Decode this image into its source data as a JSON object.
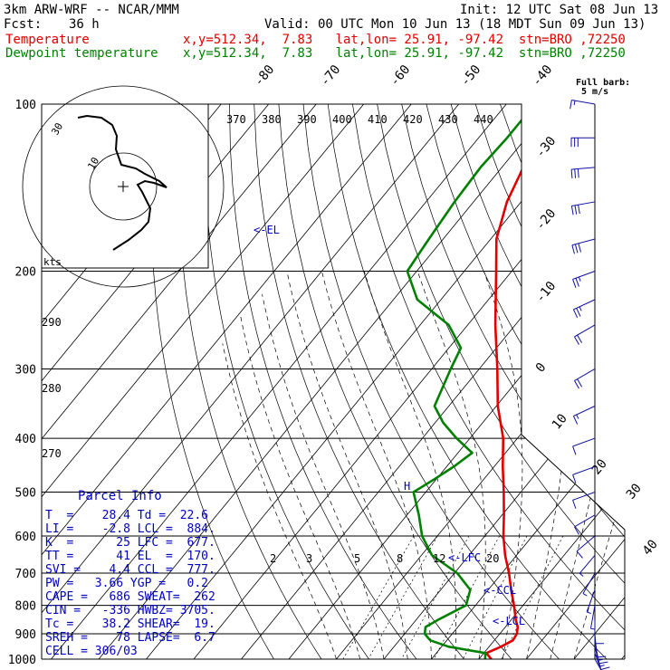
{
  "header": {
    "model": "3km ARW-WRF -- NCAR/MMM",
    "init": "Init: 12 UTC Sat 08 Jun 13",
    "fcst_label": "Fcst:",
    "fcst_value": "36 h",
    "valid": "Valid: 00 UTC Mon 10 Jun 13 (18 MDT Sun 09 Jun 13)",
    "temp_label": "Temperature",
    "temp_info": "x,y=512.34,  7.83   lat,lon= 25.91, -97.42  stn=BRO ,72250",
    "dew_label": "Dewpoint temperature",
    "dew_info": "x,y=512.34,  7.83   lat,lon= 25.91, -97.42  stn=BRO ,72250",
    "barb_title_1": "Full barb:",
    "barb_title_2": "5 m/s"
  },
  "colors": {
    "temperature": "#e00000",
    "dewpoint": "#008000",
    "parcel_text": "#0000c0",
    "hodograph": "#000000"
  },
  "chart_data": {
    "type": "line",
    "title": "",
    "pressure_levels_hpa": [
      100,
      200,
      300,
      400,
      500,
      600,
      700,
      800,
      900,
      1000
    ],
    "isotherm_labels": [
      "-80",
      "-70",
      "-60",
      "-50",
      "-40",
      "-30",
      "-20",
      "-10",
      "0",
      "10",
      "20",
      "30",
      "40"
    ],
    "theta_labels": [
      "370",
      "380",
      "390",
      "400",
      "410",
      "420",
      "430",
      "440"
    ],
    "dry_adiabat_labels": [
      "290",
      "280",
      "270"
    ],
    "mixing_ratio_labels": [
      "2",
      "3",
      "5",
      "8",
      "12",
      "20"
    ],
    "annotations": {
      "el": "<-EL",
      "lfc": "<-LFC",
      "ccl": "<-CCL",
      "lcl": "<-LCL",
      "h": "H"
    },
    "series": [
      {
        "name": "Temperature",
        "points": [
          [
            1000,
            22.6
          ],
          [
            975,
            20.5
          ],
          [
            950,
            22.5
          ],
          [
            925,
            23.9
          ],
          [
            900,
            23.6
          ],
          [
            875,
            22.6
          ],
          [
            850,
            21.0
          ],
          [
            800,
            18.1
          ],
          [
            750,
            14.8
          ],
          [
            700,
            11.5
          ],
          [
            650,
            7.6
          ],
          [
            600,
            3.9
          ],
          [
            550,
            0.4
          ],
          [
            500,
            -3.6
          ],
          [
            450,
            -8.2
          ],
          [
            400,
            -13.0
          ],
          [
            350,
            -19.7
          ],
          [
            300,
            -26.2
          ],
          [
            250,
            -34.2
          ],
          [
            200,
            -43.3
          ],
          [
            175,
            -48.8
          ],
          [
            150,
            -53.0
          ],
          [
            130,
            -55.5
          ],
          [
            115,
            -57.0
          ],
          [
            100,
            -58.0
          ]
        ]
      },
      {
        "name": "Dewpoint temperature",
        "points": [
          [
            1000,
            21.3
          ],
          [
            975,
            20.3
          ],
          [
            950,
            11.5
          ],
          [
            925,
            6.5
          ],
          [
            900,
            4.2
          ],
          [
            875,
            3.2
          ],
          [
            850,
            4.6
          ],
          [
            800,
            8.0
          ],
          [
            750,
            6.2
          ],
          [
            700,
            0.6
          ],
          [
            650,
            -7.8
          ],
          [
            600,
            -13.2
          ],
          [
            550,
            -17.5
          ],
          [
            500,
            -22.6
          ],
          [
            475,
            -20.5
          ],
          [
            450,
            -18.5
          ],
          [
            425,
            -17.0
          ],
          [
            400,
            -22.8
          ],
          [
            375,
            -28.3
          ],
          [
            350,
            -33.0
          ],
          [
            300,
            -36.0
          ],
          [
            275,
            -37.5
          ],
          [
            250,
            -44.0
          ],
          [
            225,
            -55.0
          ],
          [
            200,
            -62.0
          ],
          [
            175,
            -63.0
          ],
          [
            150,
            -64.0
          ],
          [
            130,
            -64.5
          ],
          [
            115,
            -64.0
          ],
          [
            100,
            -64.0
          ]
        ]
      }
    ],
    "hodograph": {
      "speed_rings_kts": [
        10,
        30
      ],
      "ring_labels": [
        "10",
        "30"
      ],
      "axis_label": "kts",
      "points": [
        [
          -3.0,
          -34.0
        ],
        [
          -0.5,
          -35.5
        ],
        [
          5.0,
          -33.0
        ],
        [
          8.0,
          -30.0
        ],
        [
          8.0,
          -23.0
        ],
        [
          10.0,
          -15.0
        ],
        [
          10.5,
          -10.0
        ],
        [
          12.0,
          -7.0
        ],
        [
          14.0,
          -8.0
        ],
        [
          16.0,
          -11.0
        ],
        [
          19.0,
          -14.0
        ],
        [
          23.0,
          -17.0
        ],
        [
          28.0,
          -20.0
        ],
        [
          36.0,
          -18.0
        ],
        [
          46.0,
          -17.0
        ],
        [
          56.0,
          -15.0
        ],
        [
          66.0,
          -13.0
        ],
        [
          73.0,
          -12.0
        ],
        [
          80.0,
          -12.0
        ],
        [
          86.0,
          -13.0
        ],
        [
          92.0,
          -13.5
        ]
      ]
    },
    "wind_barbs": [
      {
        "p": 1000,
        "wdir": 150,
        "wspd": 6
      },
      {
        "p": 975,
        "wdir": 160,
        "wspd": 8
      },
      {
        "p": 950,
        "wdir": 165,
        "wspd": 9
      },
      {
        "p": 925,
        "wdir": 170,
        "wspd": 8
      },
      {
        "p": 900,
        "wdir": 175,
        "wspd": 6
      },
      {
        "p": 850,
        "wdir": 180,
        "wspd": 5
      },
      {
        "p": 800,
        "wdir": 190,
        "wspd": 4
      },
      {
        "p": 750,
        "wdir": 200,
        "wspd": 4
      },
      {
        "p": 700,
        "wdir": 210,
        "wspd": 4
      },
      {
        "p": 650,
        "wdir": 220,
        "wspd": 4
      },
      {
        "p": 600,
        "wdir": 230,
        "wspd": 5
      },
      {
        "p": 550,
        "wdir": 240,
        "wspd": 5
      },
      {
        "p": 500,
        "wdir": 250,
        "wspd": 6
      },
      {
        "p": 450,
        "wdir": 250,
        "wspd": 7
      },
      {
        "p": 400,
        "wdir": 250,
        "wspd": 7
      },
      {
        "p": 350,
        "wdir": 245,
        "wspd": 8
      },
      {
        "p": 300,
        "wdir": 240,
        "wspd": 10
      },
      {
        "p": 250,
        "wdir": 240,
        "wspd": 12
      },
      {
        "p": 225,
        "wdir": 245,
        "wspd": 13
      },
      {
        "p": 200,
        "wdir": 250,
        "wspd": 14
      },
      {
        "p": 175,
        "wdir": 255,
        "wspd": 15
      },
      {
        "p": 150,
        "wdir": 260,
        "wspd": 17
      },
      {
        "p": 130,
        "wdir": 265,
        "wspd": 17
      },
      {
        "p": 115,
        "wdir": 270,
        "wspd": 15
      },
      {
        "p": 100,
        "wdir": 280,
        "wspd": 8
      }
    ]
  },
  "parcel_info": {
    "title": "Parcel Info",
    "rows": [
      "T  =    28.4 Td =  22.6",
      "LI =    -2.8 LCL =  884.",
      "K  =      25 LFC =  677.",
      "TT =      41 EL  =  170.",
      "SVI =    4.4 CCL =  777.",
      "PW =   3.66 YGP =   0.2",
      "CAPE =   686 SWEAT=  262",
      "CIN =   -336 HWBZ= 3705.",
      "Tc =    38.2 SHEAR=  19.",
      "SREH =    78 LAPSE=  6.7",
      "CELL = 306/03"
    ]
  }
}
